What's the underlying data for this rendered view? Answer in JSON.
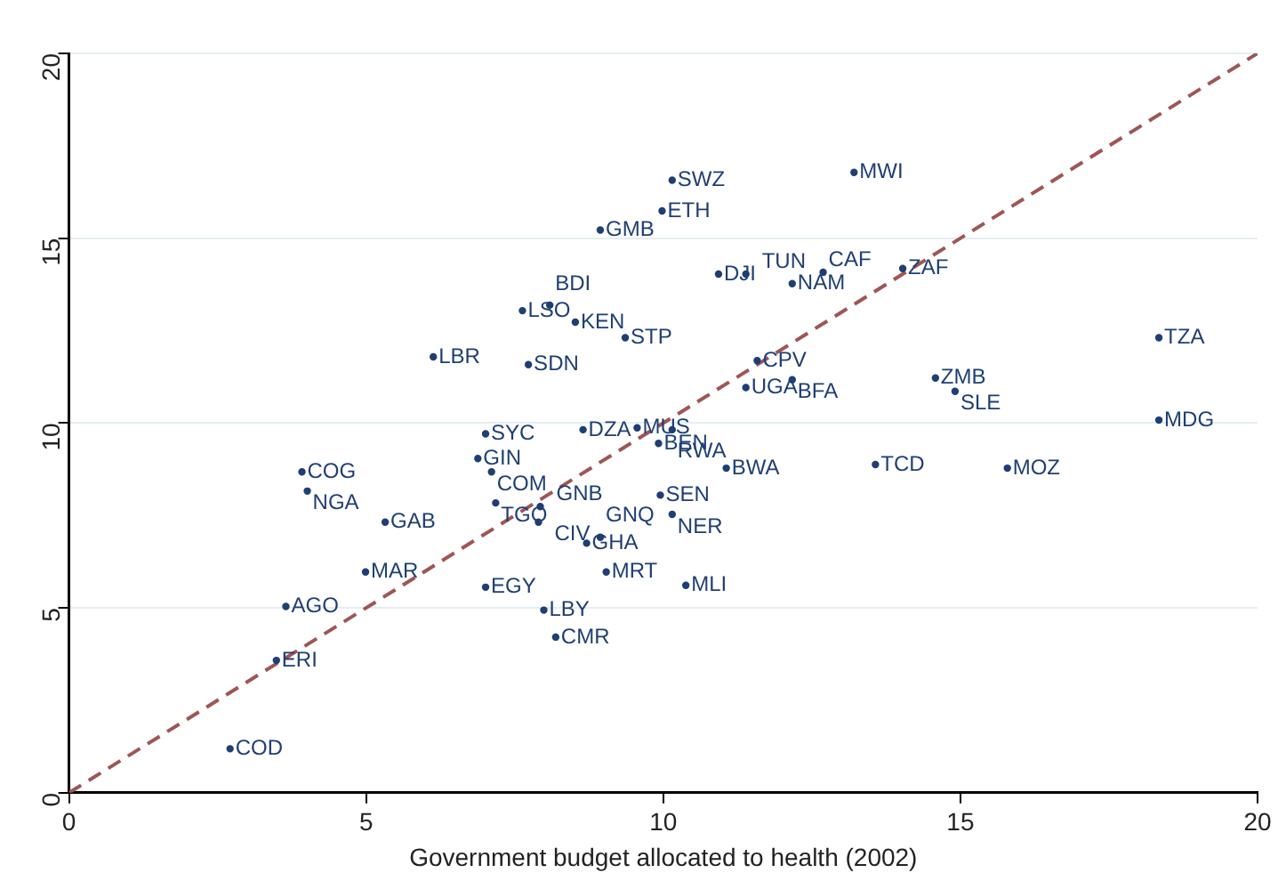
{
  "chart_data": {
    "type": "scatter",
    "xlabel": "Government budget allocated to health (2002)",
    "xlim": [
      0,
      20
    ],
    "xticks": [
      0,
      5,
      10,
      15,
      20
    ],
    "ylim": [
      0,
      20
    ],
    "yticks": [
      0,
      5,
      10,
      15,
      20
    ],
    "grid": "y",
    "legend": false,
    "series": [
      {
        "type": "scatter",
        "marker": "circle",
        "color": "#1f3f73",
        "x": [
          10.15,
          13.21,
          9.98,
          8.94,
          10.93,
          11.39,
          12.17,
          12.69,
          14.03,
          7.63,
          8.09,
          8.52,
          9.36,
          6.13,
          7.73,
          18.34,
          11.58,
          11.39,
          12.17,
          14.58,
          14.91,
          18.34,
          7.01,
          8.65,
          9.56,
          10.15,
          9.92,
          6.88,
          7.11,
          3.92,
          4.01,
          11.06,
          13.57,
          15.79,
          7.18,
          7.93,
          7.9,
          9.95,
          10.15,
          5.32,
          8.71,
          8.94,
          4.99,
          9.04,
          10.38,
          7.01,
          3.65,
          7.99,
          8.19,
          3.49,
          2.71
        ],
        "values": [
          16.57,
          16.78,
          15.74,
          15.22,
          14.03,
          14.03,
          13.77,
          14.08,
          14.18,
          13.04,
          13.19,
          12.73,
          12.31,
          11.79,
          11.58,
          12.31,
          11.69,
          10.96,
          11.17,
          11.22,
          10.86,
          10.08,
          9.71,
          9.82,
          9.87,
          9.82,
          9.45,
          9.04,
          8.68,
          8.68,
          8.16,
          8.78,
          8.88,
          8.78,
          7.84,
          7.74,
          7.32,
          8.05,
          7.53,
          7.32,
          6.75,
          6.91,
          5.97,
          5.97,
          5.61,
          5.56,
          5.04,
          4.94,
          4.21,
          3.58,
          1.19
        ],
        "value_labels": [
          "SWZ",
          "MWI",
          "ETH",
          "GMB",
          "DJI",
          "TUN",
          "NAM",
          "CAF",
          "ZAF",
          "LSO",
          "BDI",
          "KEN",
          "STP",
          "LBR",
          "SDN",
          "TZA",
          "CPV",
          "UGA",
          "BFA",
          "ZMB",
          "SLE",
          "MDG",
          "SYC",
          "DZA",
          "MUS",
          "RWA",
          "BEN",
          "GIN",
          "COM",
          "COG",
          "NGA",
          "BWA",
          "TCD",
          "MOZ",
          "TGO",
          "GNB",
          "CIV",
          "SEN",
          "NER",
          "GAB",
          "GHA",
          "GNQ",
          "MAR",
          "MRT",
          "MLI",
          "EGY",
          "AGO",
          "LBY",
          "CMR",
          "ERI",
          "COD"
        ]
      },
      {
        "type": "line",
        "color": "#a05555",
        "line_style": "dashed",
        "x": [
          0,
          20
        ],
        "values": [
          0,
          20
        ]
      }
    ]
  }
}
